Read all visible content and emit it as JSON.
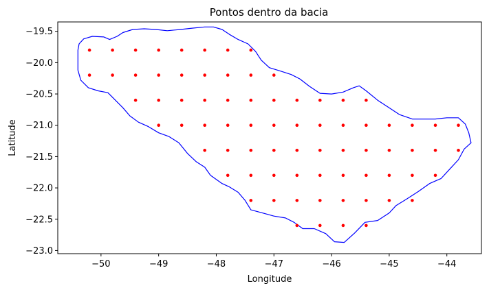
{
  "chart_data": {
    "type": "scatter",
    "title": "Pontos dentro da bacia",
    "xlabel": "Longitude",
    "ylabel": "Latitude",
    "xlim": [
      -50.75,
      -43.4
    ],
    "ylim": [
      -23.05,
      -19.35
    ],
    "xticks": [
      -50,
      -49,
      -48,
      -47,
      -46,
      -45,
      -44
    ],
    "xtick_labels": [
      "−50",
      "−49",
      "−48",
      "−47",
      "−46",
      "−45",
      "−44"
    ],
    "yticks": [
      -19.5,
      -20.0,
      -20.5,
      -21.0,
      -21.5,
      -22.0,
      -22.5,
      -23.0
    ],
    "ytick_labels": [
      "−19.5",
      "−20.0",
      "−20.5",
      "−21.0",
      "−21.5",
      "−22.0",
      "−22.5",
      "−23.0"
    ],
    "grid": false,
    "boundary_color": "#0000ff",
    "point_color": "#ff0000",
    "boundary": [
      [
        -50.38,
        -19.7
      ],
      [
        -50.3,
        -19.62
      ],
      [
        -50.15,
        -19.58
      ],
      [
        -49.95,
        -19.59
      ],
      [
        -49.85,
        -19.63
      ],
      [
        -49.72,
        -19.58
      ],
      [
        -49.62,
        -19.52
      ],
      [
        -49.45,
        -19.47
      ],
      [
        -49.25,
        -19.46
      ],
      [
        -49.05,
        -19.47
      ],
      [
        -48.85,
        -19.49
      ],
      [
        -48.62,
        -19.47
      ],
      [
        -48.42,
        -19.45
      ],
      [
        -48.2,
        -19.43
      ],
      [
        -48.05,
        -19.43
      ],
      [
        -47.9,
        -19.47
      ],
      [
        -47.77,
        -19.55
      ],
      [
        -47.62,
        -19.63
      ],
      [
        -47.45,
        -19.7
      ],
      [
        -47.32,
        -19.82
      ],
      [
        -47.22,
        -19.96
      ],
      [
        -47.08,
        -20.08
      ],
      [
        -46.9,
        -20.13
      ],
      [
        -46.7,
        -20.19
      ],
      [
        -46.55,
        -20.26
      ],
      [
        -46.38,
        -20.38
      ],
      [
        -46.2,
        -20.49
      ],
      [
        -46.0,
        -20.5
      ],
      [
        -45.8,
        -20.47
      ],
      [
        -45.62,
        -20.4
      ],
      [
        -45.52,
        -20.37
      ],
      [
        -45.4,
        -20.45
      ],
      [
        -45.2,
        -20.6
      ],
      [
        -45.0,
        -20.72
      ],
      [
        -44.82,
        -20.83
      ],
      [
        -44.6,
        -20.9
      ],
      [
        -44.4,
        -20.9
      ],
      [
        -44.2,
        -20.9
      ],
      [
        -44.0,
        -20.88
      ],
      [
        -43.8,
        -20.88
      ],
      [
        -43.68,
        -20.98
      ],
      [
        -43.62,
        -21.12
      ],
      [
        -43.58,
        -21.28
      ],
      [
        -43.7,
        -21.38
      ],
      [
        -43.8,
        -21.55
      ],
      [
        -43.95,
        -21.7
      ],
      [
        -44.1,
        -21.85
      ],
      [
        -44.3,
        -21.93
      ],
      [
        -44.5,
        -22.06
      ],
      [
        -44.7,
        -22.18
      ],
      [
        -44.88,
        -22.28
      ],
      [
        -45.0,
        -22.4
      ],
      [
        -45.2,
        -22.52
      ],
      [
        -45.42,
        -22.55
      ],
      [
        -45.6,
        -22.72
      ],
      [
        -45.78,
        -22.87
      ],
      [
        -45.95,
        -22.86
      ],
      [
        -46.1,
        -22.73
      ],
      [
        -46.3,
        -22.65
      ],
      [
        -46.5,
        -22.65
      ],
      [
        -46.65,
        -22.55
      ],
      [
        -46.8,
        -22.48
      ],
      [
        -47.0,
        -22.45
      ],
      [
        -47.2,
        -22.4
      ],
      [
        -47.4,
        -22.35
      ],
      [
        -47.5,
        -22.2
      ],
      [
        -47.62,
        -22.07
      ],
      [
        -47.78,
        -21.98
      ],
      [
        -47.9,
        -21.93
      ],
      [
        -48.1,
        -21.8
      ],
      [
        -48.2,
        -21.67
      ],
      [
        -48.35,
        -21.58
      ],
      [
        -48.5,
        -21.45
      ],
      [
        -48.65,
        -21.28
      ],
      [
        -48.82,
        -21.18
      ],
      [
        -49.0,
        -21.12
      ],
      [
        -49.18,
        -21.02
      ],
      [
        -49.35,
        -20.95
      ],
      [
        -49.5,
        -20.85
      ],
      [
        -49.62,
        -20.72
      ],
      [
        -49.75,
        -20.6
      ],
      [
        -49.88,
        -20.48
      ],
      [
        -50.05,
        -20.45
      ],
      [
        -50.22,
        -20.4
      ],
      [
        -50.35,
        -20.28
      ],
      [
        -50.4,
        -20.12
      ],
      [
        -50.4,
        -19.95
      ],
      [
        -50.4,
        -19.8
      ]
    ],
    "points": [
      [
        -50.2,
        -19.8
      ],
      [
        -49.8,
        -19.8
      ],
      [
        -49.4,
        -19.8
      ],
      [
        -49.0,
        -19.8
      ],
      [
        -48.6,
        -19.8
      ],
      [
        -48.2,
        -19.8
      ],
      [
        -47.8,
        -19.8
      ],
      [
        -47.4,
        -19.8
      ],
      [
        -50.2,
        -20.2
      ],
      [
        -49.8,
        -20.2
      ],
      [
        -49.4,
        -20.2
      ],
      [
        -49.0,
        -20.2
      ],
      [
        -48.6,
        -20.2
      ],
      [
        -48.2,
        -20.2
      ],
      [
        -47.8,
        -20.2
      ],
      [
        -47.4,
        -20.2
      ],
      [
        -47.0,
        -20.2
      ],
      [
        -49.4,
        -20.6
      ],
      [
        -49.0,
        -20.6
      ],
      [
        -48.6,
        -20.6
      ],
      [
        -48.2,
        -20.6
      ],
      [
        -47.8,
        -20.6
      ],
      [
        -47.4,
        -20.6
      ],
      [
        -47.0,
        -20.6
      ],
      [
        -46.6,
        -20.6
      ],
      [
        -46.2,
        -20.6
      ],
      [
        -45.8,
        -20.6
      ],
      [
        -45.4,
        -20.6
      ],
      [
        -49.0,
        -21.0
      ],
      [
        -48.6,
        -21.0
      ],
      [
        -48.2,
        -21.0
      ],
      [
        -47.8,
        -21.0
      ],
      [
        -47.4,
        -21.0
      ],
      [
        -47.0,
        -21.0
      ],
      [
        -46.6,
        -21.0
      ],
      [
        -46.2,
        -21.0
      ],
      [
        -45.8,
        -21.0
      ],
      [
        -45.4,
        -21.0
      ],
      [
        -45.0,
        -21.0
      ],
      [
        -44.6,
        -21.0
      ],
      [
        -44.2,
        -21.0
      ],
      [
        -43.8,
        -21.0
      ],
      [
        -48.2,
        -21.4
      ],
      [
        -47.8,
        -21.4
      ],
      [
        -47.4,
        -21.4
      ],
      [
        -47.0,
        -21.4
      ],
      [
        -46.6,
        -21.4
      ],
      [
        -46.2,
        -21.4
      ],
      [
        -45.8,
        -21.4
      ],
      [
        -45.4,
        -21.4
      ],
      [
        -45.0,
        -21.4
      ],
      [
        -44.6,
        -21.4
      ],
      [
        -44.2,
        -21.4
      ],
      [
        -43.8,
        -21.4
      ],
      [
        -47.8,
        -21.8
      ],
      [
        -47.4,
        -21.8
      ],
      [
        -47.0,
        -21.8
      ],
      [
        -46.6,
        -21.8
      ],
      [
        -46.2,
        -21.8
      ],
      [
        -45.8,
        -21.8
      ],
      [
        -45.4,
        -21.8
      ],
      [
        -45.0,
        -21.8
      ],
      [
        -44.6,
        -21.8
      ],
      [
        -44.2,
        -21.8
      ],
      [
        -47.4,
        -22.2
      ],
      [
        -47.0,
        -22.2
      ],
      [
        -46.6,
        -22.2
      ],
      [
        -46.2,
        -22.2
      ],
      [
        -45.8,
        -22.2
      ],
      [
        -45.4,
        -22.2
      ],
      [
        -45.0,
        -22.2
      ],
      [
        -44.6,
        -22.2
      ],
      [
        -46.6,
        -22.6
      ],
      [
        -46.2,
        -22.6
      ],
      [
        -45.8,
        -22.6
      ],
      [
        -45.4,
        -22.6
      ]
    ]
  }
}
